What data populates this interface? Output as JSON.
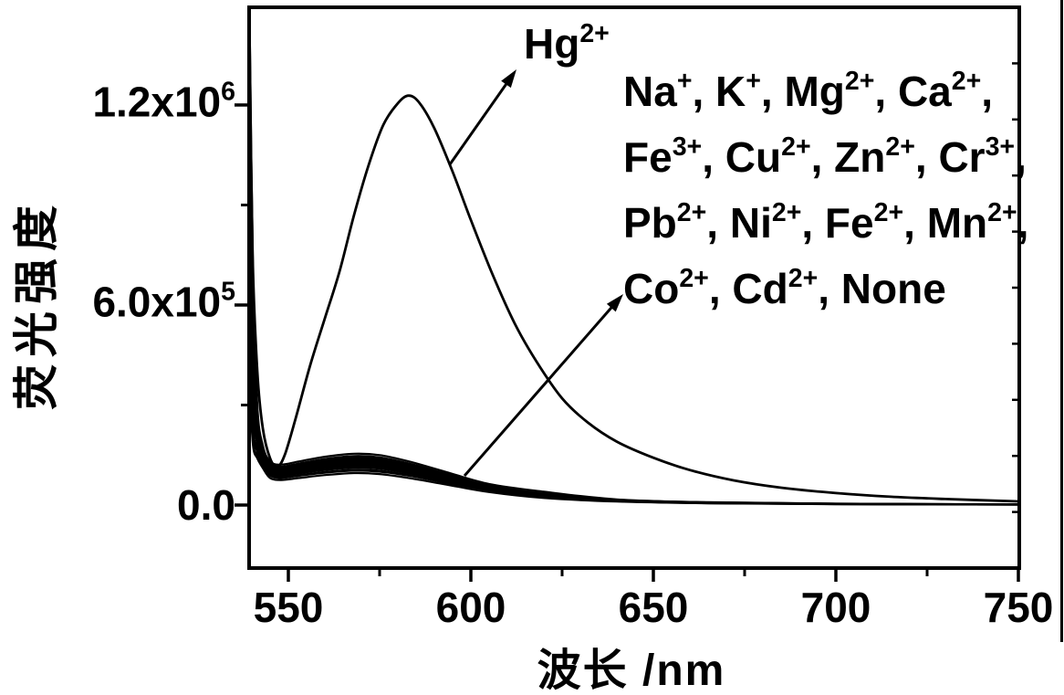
{
  "figure": {
    "background": "#ffffff",
    "ink_color": "#000000"
  },
  "chart_data": {
    "type": "line",
    "title": "",
    "xlabel": "波长 /nm",
    "ylabel": "荧光强度",
    "xlim": [
      539.25,
      750.25
    ],
    "ylim": [
      -189000,
      1493000
    ],
    "grid": false,
    "legend_position": "upper right (text block, no keys)",
    "x_ticks": {
      "major": [
        550,
        600,
        650,
        700,
        750
      ],
      "minor": [
        575,
        625,
        675,
        725
      ],
      "labels": [
        "550",
        "600",
        "650",
        "700",
        "750"
      ]
    },
    "y_ticks": {
      "major": [
        0,
        600000,
        1200000
      ],
      "minor": [
        300000,
        900000
      ],
      "labels": [
        {
          "text": "0.0",
          "sup": ""
        },
        {
          "text": "6.0x10",
          "sup": "5"
        },
        {
          "text": "1.2x10",
          "sup": "6"
        }
      ]
    },
    "right_axis_divisions": 10,
    "annotations": {
      "hg_label": {
        "text": "Hg",
        "sup": "2+"
      },
      "arrows": [
        {
          "name": "arrow-to-hg-curve",
          "tail": [
            493,
            180
          ],
          "head": [
            566,
            76
          ]
        },
        {
          "name": "arrow-to-ion-bundle",
          "tail": [
            509,
            521
          ],
          "head": [
            683,
            322
          ]
        }
      ]
    },
    "legend_lines": [
      [
        {
          "t": "Na",
          "s": "+"
        },
        {
          "t": ", K",
          "s": "+"
        },
        {
          "t": ", Mg",
          "s": "2+"
        },
        {
          "t": ", Ca",
          "s": "2+"
        },
        {
          "t": ",",
          "s": ""
        }
      ],
      [
        {
          "t": "Fe",
          "s": "3+"
        },
        {
          "t": ", Cu",
          "s": "2+"
        },
        {
          "t": ", Zn",
          "s": "2+"
        },
        {
          "t": ", Cr",
          "s": "3+"
        },
        {
          "t": ",",
          "s": ""
        }
      ],
      [
        {
          "t": "Pb",
          "s": "2+"
        },
        {
          "t": ", Ni",
          "s": "2+"
        },
        {
          "t": ", Fe",
          "s": "2+"
        },
        {
          "t": ", Mn",
          "s": "2+"
        },
        {
          "t": ",",
          "s": ""
        }
      ],
      [
        {
          "t": "Co",
          "s": "2+"
        },
        {
          "t": ", Cd",
          "s": "2+"
        },
        {
          "t": ", None",
          "s": ""
        }
      ]
    ],
    "series": [
      {
        "name": "Hg2+",
        "nm": [
          539.4,
          540.2,
          541.5,
          543,
          545,
          547,
          549,
          552,
          556,
          560,
          564,
          568,
          572,
          576,
          580,
          583,
          586,
          590,
          595,
          600,
          606,
          612,
          618,
          625,
          632,
          640,
          650,
          660,
          672,
          685,
          700,
          715,
          730,
          750
        ],
        "intensity": [
          1380000,
          750000,
          400000,
          230000,
          140000,
          115000,
          150000,
          260000,
          420000,
          560000,
          700000,
          870000,
          1020000,
          1140000,
          1205000,
          1228000,
          1205000,
          1130000,
          1000000,
          855000,
          690000,
          545000,
          430000,
          320000,
          248000,
          190000,
          142000,
          105000,
          74000,
          52000,
          36000,
          25000,
          18000,
          11000
        ]
      },
      {
        "name": "Na+",
        "nm": [
          539.4,
          540.3,
          541.5,
          543,
          545,
          548,
          553,
          560,
          568,
          575,
          583,
          593,
          605,
          620,
          640,
          665,
          700,
          750
        ],
        "intensity": [
          1450000,
          720000,
          300000,
          179000,
          131000,
          121000,
          131000,
          145000,
          154000,
          150000,
          131000,
          100000,
          63000,
          40000,
          17000,
          8400,
          4200,
          2100
        ]
      },
      {
        "name": "K+",
        "nm": [
          539.4,
          540.3,
          541.5,
          543,
          545,
          548,
          553,
          560,
          568,
          575,
          583,
          593,
          605,
          620,
          640,
          665,
          700,
          750
        ],
        "intensity": [
          1300000,
          650000,
          280000,
          170000,
          125000,
          115000,
          125000,
          138000,
          147000,
          143000,
          125000,
          95000,
          60000,
          36000,
          16000,
          8000,
          4000,
          2000
        ]
      },
      {
        "name": "Mg2+",
        "nm": [
          539.4,
          540.3,
          541.5,
          543,
          545,
          548,
          553,
          560,
          568,
          575,
          583,
          593,
          605,
          620,
          640,
          665,
          700,
          750
        ],
        "intensity": [
          1150000,
          580000,
          260000,
          165000,
          121000,
          112000,
          121000,
          134000,
          143000,
          139000,
          121000,
          92000,
          58000,
          32000,
          15500,
          7800,
          3900,
          1900
        ]
      },
      {
        "name": "Ca2+",
        "nm": [
          539.4,
          540.3,
          541.5,
          543,
          545,
          548,
          553,
          560,
          568,
          575,
          583,
          593,
          605,
          620,
          640,
          665,
          700,
          750
        ],
        "intensity": [
          1050000,
          520000,
          240000,
          160000,
          118000,
          108000,
          118000,
          130000,
          138000,
          134000,
          118000,
          89000,
          56000,
          31000,
          15000,
          7500,
          3800,
          1900
        ]
      },
      {
        "name": "Fe3+",
        "nm": [
          539.4,
          540.3,
          541.5,
          543,
          545,
          548,
          553,
          560,
          568,
          575,
          583,
          593,
          605,
          620,
          640,
          665,
          700,
          750
        ],
        "intensity": [
          950000,
          480000,
          230000,
          153000,
          113000,
          104000,
          113000,
          124000,
          132000,
          129000,
          113000,
          86000,
          54000,
          30000,
          14000,
          7200,
          3600,
          1800
        ]
      },
      {
        "name": "Cu2+",
        "nm": [
          539.4,
          540.3,
          541.5,
          543,
          545,
          548,
          553,
          560,
          568,
          575,
          583,
          593,
          605,
          620,
          640,
          665,
          700,
          750
        ],
        "intensity": [
          850000,
          420000,
          200000,
          122000,
          90000,
          83000,
          90000,
          99000,
          106000,
          103000,
          90000,
          68000,
          43000,
          24000,
          11500,
          5800,
          2900,
          1400
        ]
      },
      {
        "name": "Zn2+",
        "nm": [
          539.4,
          540.3,
          541.5,
          543,
          545,
          548,
          553,
          560,
          568,
          575,
          583,
          593,
          605,
          620,
          640,
          665,
          700,
          750
        ],
        "intensity": [
          800000,
          400000,
          210000,
          150000,
          110000,
          101000,
          110000,
          121000,
          129000,
          126000,
          110000,
          84000,
          53000,
          29000,
          14000,
          7000,
          3500,
          1800
        ]
      },
      {
        "name": "Cr3+",
        "nm": [
          539.4,
          540.3,
          541.5,
          543,
          545,
          548,
          553,
          560,
          568,
          575,
          583,
          593,
          605,
          620,
          640,
          665,
          700,
          750
        ],
        "intensity": [
          720000,
          360000,
          200000,
          145000,
          106000,
          98000,
          106000,
          117000,
          125000,
          122000,
          106000,
          81000,
          51000,
          28000,
          13600,
          6800,
          3400,
          1700
        ]
      },
      {
        "name": "Pb2+",
        "nm": [
          539.4,
          540.3,
          541.5,
          543,
          545,
          548,
          553,
          560,
          568,
          575,
          583,
          593,
          605,
          620,
          640,
          665,
          700,
          750
        ],
        "intensity": [
          650000,
          320000,
          190000,
          136000,
          100000,
          92000,
          100000,
          110000,
          118000,
          114000,
          100000,
          76000,
          48000,
          26000,
          13000,
          6400,
          3200,
          1600
        ]
      },
      {
        "name": "Ni2+",
        "nm": [
          539.4,
          540.3,
          541.5,
          543,
          545,
          548,
          553,
          560,
          568,
          575,
          583,
          593,
          605,
          620,
          640,
          665,
          700,
          750
        ],
        "intensity": [
          580000,
          290000,
          180000,
          129000,
          95000,
          87000,
          95000,
          105000,
          112000,
          109000,
          95000,
          72000,
          46000,
          25000,
          12000,
          6100,
          3000,
          1500
        ]
      },
      {
        "name": "Fe2+",
        "nm": [
          539.4,
          540.3,
          541.5,
          543,
          545,
          548,
          553,
          560,
          568,
          575,
          583,
          593,
          605,
          620,
          640,
          665,
          700,
          750
        ],
        "intensity": [
          520000,
          260000,
          190000,
          156000,
          115000,
          106000,
          115000,
          127000,
          135000,
          132000,
          115000,
          87000,
          55000,
          30000,
          14700,
          7400,
          3700,
          1800
        ]
      },
      {
        "name": "Mn2+",
        "nm": [
          539.4,
          540.3,
          541.5,
          543,
          545,
          548,
          553,
          560,
          568,
          575,
          583,
          593,
          605,
          620,
          640,
          665,
          700,
          750
        ],
        "intensity": [
          460000,
          230000,
          170000,
          141000,
          104000,
          95000,
          104000,
          115000,
          122000,
          119000,
          104000,
          79000,
          50000,
          27000,
          13300,
          6600,
          3300,
          1700
        ]
      },
      {
        "name": "Co2+",
        "nm": [
          539.4,
          540.3,
          541.5,
          543,
          545,
          548,
          553,
          560,
          568,
          575,
          583,
          593,
          605,
          620,
          640,
          665,
          700,
          750
        ],
        "intensity": [
          420000,
          210000,
          160000,
          133000,
          98000,
          90000,
          98000,
          108000,
          115000,
          112000,
          98000,
          74000,
          47000,
          26000,
          12500,
          6200,
          3100,
          1600
        ]
      },
      {
        "name": "Cd2+",
        "nm": [
          539.4,
          540.3,
          541.5,
          543,
          545,
          548,
          553,
          560,
          568,
          575,
          583,
          593,
          605,
          620,
          640,
          665,
          700,
          750
        ],
        "intensity": [
          380000,
          190000,
          150000,
          119000,
          88000,
          81000,
          88000,
          97000,
          103000,
          100000,
          88000,
          67000,
          42000,
          23000,
          11200,
          5600,
          2800,
          1400
        ]
      },
      {
        "name": "None",
        "nm": [
          539.4,
          540.3,
          541.5,
          543,
          545,
          548,
          553,
          560,
          568,
          575,
          583,
          593,
          605,
          620,
          640,
          665,
          700,
          750
        ],
        "intensity": [
          350000,
          180000,
          140000,
          111000,
          81000,
          75000,
          81000,
          90000,
          96000,
          93000,
          81000,
          62000,
          39000,
          21000,
          10400,
          5200,
          2600,
          1300
        ]
      }
    ]
  }
}
